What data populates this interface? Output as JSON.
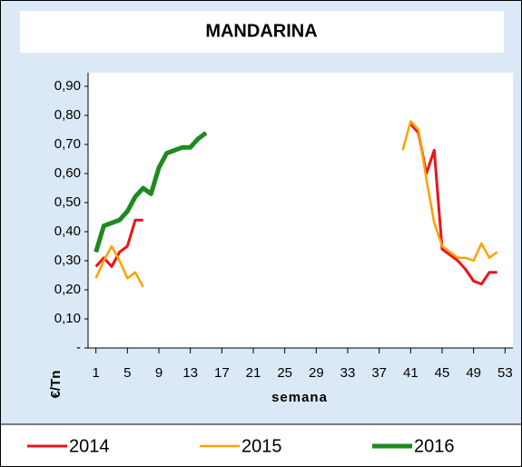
{
  "chart_data": {
    "type": "line",
    "title": "MANDARINA",
    "xlabel": "semana",
    "ylabel": "€/Tn",
    "x": [
      1,
      2,
      3,
      4,
      5,
      6,
      7,
      8,
      9,
      10,
      11,
      12,
      13,
      14,
      15,
      16,
      17,
      18,
      19,
      20,
      21,
      22,
      23,
      24,
      25,
      26,
      27,
      28,
      29,
      30,
      31,
      32,
      33,
      34,
      35,
      36,
      37,
      38,
      39,
      40,
      41,
      42,
      43,
      44,
      45,
      46,
      47,
      48,
      49,
      50,
      51,
      52
    ],
    "series": [
      {
        "name": "2014",
        "color": "#e8141b",
        "width": 3,
        "values": [
          0.28,
          0.31,
          0.28,
          0.33,
          0.35,
          0.44,
          0.44,
          null,
          null,
          null,
          null,
          null,
          null,
          null,
          null,
          null,
          null,
          null,
          null,
          null,
          null,
          null,
          null,
          null,
          null,
          null,
          null,
          null,
          null,
          null,
          null,
          null,
          null,
          null,
          null,
          null,
          null,
          null,
          null,
          null,
          0.77,
          0.74,
          0.6,
          0.68,
          0.34,
          0.32,
          0.3,
          0.27,
          0.23,
          0.22,
          0.26,
          0.26
        ]
      },
      {
        "name": "2015",
        "color": "#ffa000",
        "width": 2.5,
        "values": [
          0.24,
          0.3,
          0.35,
          0.3,
          0.24,
          0.26,
          0.21,
          null,
          null,
          null,
          null,
          null,
          null,
          null,
          null,
          null,
          null,
          null,
          null,
          null,
          null,
          null,
          null,
          null,
          null,
          null,
          null,
          null,
          null,
          null,
          null,
          null,
          null,
          null,
          null,
          null,
          null,
          null,
          null,
          0.68,
          0.78,
          0.75,
          0.58,
          0.43,
          0.35,
          0.33,
          0.31,
          0.31,
          0.3,
          0.36,
          0.31,
          0.33
        ]
      },
      {
        "name": "2016",
        "color": "#1f8a1f",
        "width": 5,
        "values": [
          0.33,
          0.42,
          0.43,
          0.44,
          0.47,
          0.52,
          0.55,
          0.53,
          0.62,
          0.67,
          0.68,
          0.69,
          0.69,
          0.72,
          0.74,
          null,
          null,
          null,
          null,
          null,
          null,
          null,
          null,
          null,
          null,
          null,
          null,
          null,
          null,
          null,
          null,
          null,
          null,
          null,
          null,
          null,
          null,
          null,
          null,
          null,
          null,
          null,
          null,
          null,
          null,
          null,
          null,
          null,
          null,
          null,
          null,
          null
        ]
      }
    ],
    "xlim": [
      0,
      54
    ],
    "xticks": [
      1,
      5,
      9,
      13,
      17,
      21,
      25,
      29,
      33,
      37,
      41,
      45,
      49,
      53
    ],
    "ylim": [
      0,
      0.9
    ],
    "yticks": [
      {
        "value": 0,
        "label": "-"
      },
      {
        "value": 0.1,
        "label": "0,10"
      },
      {
        "value": 0.2,
        "label": "0,20"
      },
      {
        "value": 0.3,
        "label": "0,30"
      },
      {
        "value": 0.4,
        "label": "0,40"
      },
      {
        "value": 0.5,
        "label": "0,50"
      },
      {
        "value": 0.6,
        "label": "0,60"
      },
      {
        "value": 0.7,
        "label": "0,70"
      },
      {
        "value": 0.8,
        "label": "0,80"
      },
      {
        "value": 0.9,
        "label": "0,90"
      }
    ],
    "grid": false,
    "legend": "bottom"
  }
}
